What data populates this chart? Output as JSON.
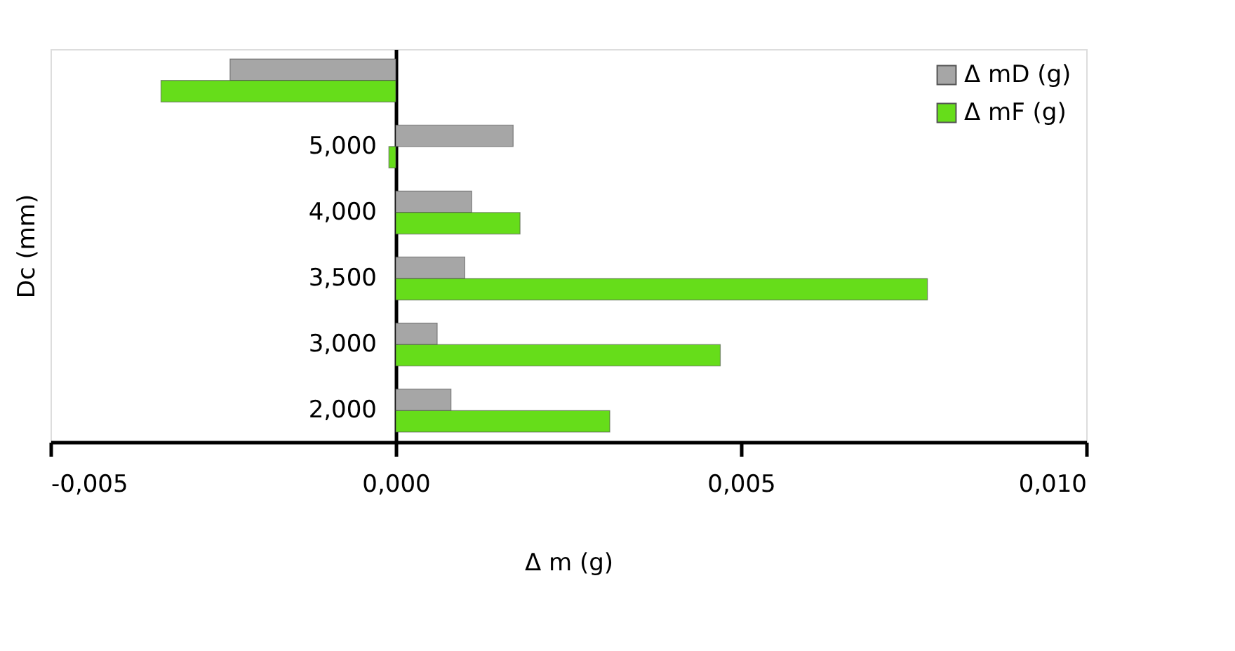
{
  "chart_data": {
    "type": "bar",
    "orientation": "horizontal",
    "ylabel": "Dc (mm)",
    "xlabel": "Δ m (g)",
    "categories": [
      null,
      "5,000",
      "4,000",
      "3,500",
      "3,000",
      "2,000"
    ],
    "series": [
      {
        "name": "Δ mD (g)",
        "color": "#a6a6a6",
        "values": [
          -0.0024,
          0.0017,
          0.0011,
          0.001,
          0.0006,
          0.0008
        ]
      },
      {
        "name": "Δ mF (g)",
        "color": "#66dd1a",
        "values": [
          -0.0034,
          -0.0001,
          0.0018,
          0.0077,
          0.0047,
          0.0031
        ]
      }
    ],
    "xlim": [
      -0.005,
      0.01
    ],
    "xticks": [
      {
        "value": -0.005,
        "label": "-0,005"
      },
      {
        "value": 0,
        "label": "0,000"
      },
      {
        "value": 0.005,
        "label": "0,005"
      },
      {
        "value": 0.01,
        "label": "0,010"
      }
    ],
    "grid": false,
    "legend": "top right"
  }
}
